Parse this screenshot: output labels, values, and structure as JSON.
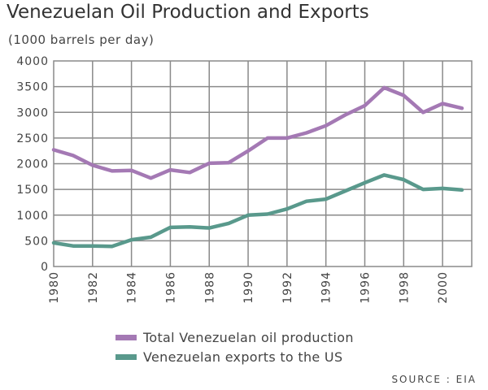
{
  "title": "Venezuelan Oil Production and Exports",
  "subtitle": "(1000 barrels per day)",
  "source": "SOURCE : EIA",
  "colors": {
    "production": "#a479b4",
    "exports": "#59998c",
    "grid": "#8a8a8a"
  },
  "chart_data": {
    "type": "line",
    "title": "Venezuelan Oil Production and Exports",
    "subtitle": "(1000 barrels per day)",
    "xlabel": "",
    "ylabel": "",
    "xlim": [
      1980,
      2001.5
    ],
    "ylim": [
      0,
      4000
    ],
    "x_ticks": [
      1980,
      1982,
      1984,
      1986,
      1988,
      1990,
      1992,
      1994,
      1996,
      1998,
      2000
    ],
    "x_tick_labels": [
      "1980",
      "1982",
      "1984",
      "1986",
      "1988",
      "1990",
      "1992",
      "1994",
      "1996",
      "1998",
      "2000"
    ],
    "y_ticks": [
      0,
      500,
      1000,
      1500,
      2000,
      2500,
      3000,
      3500,
      4000
    ],
    "y_tick_labels": [
      "0",
      "500",
      "1000",
      "1500",
      "2000",
      "2500",
      "3000",
      "3500",
      "4000"
    ],
    "grid": true,
    "legend_position": "bottom",
    "series": [
      {
        "name": "Total Venezuelan oil production",
        "x": [
          1980,
          1981,
          1982,
          1983,
          1984,
          1985,
          1986,
          1987,
          1988,
          1989,
          1990,
          1991,
          1992,
          1993,
          1994,
          1995,
          1996,
          1997,
          1998,
          1999,
          2000,
          2001
        ],
        "values": [
          2270,
          2160,
          1970,
          1860,
          1870,
          1720,
          1880,
          1830,
          2010,
          2020,
          2250,
          2500,
          2500,
          2600,
          2740,
          2950,
          3130,
          3480,
          3330,
          3000,
          3170,
          3080
        ]
      },
      {
        "name": "Venezuelan exports to the US",
        "x": [
          1980,
          1981,
          1982,
          1983,
          1984,
          1985,
          1986,
          1987,
          1988,
          1989,
          1990,
          1991,
          1992,
          1993,
          1994,
          1995,
          1996,
          1997,
          1998,
          1999,
          2000,
          2001
        ],
        "values": [
          460,
          400,
          400,
          390,
          520,
          570,
          760,
          770,
          750,
          840,
          1000,
          1020,
          1120,
          1270,
          1310,
          1470,
          1630,
          1780,
          1690,
          1500,
          1520,
          1490
        ]
      }
    ]
  }
}
